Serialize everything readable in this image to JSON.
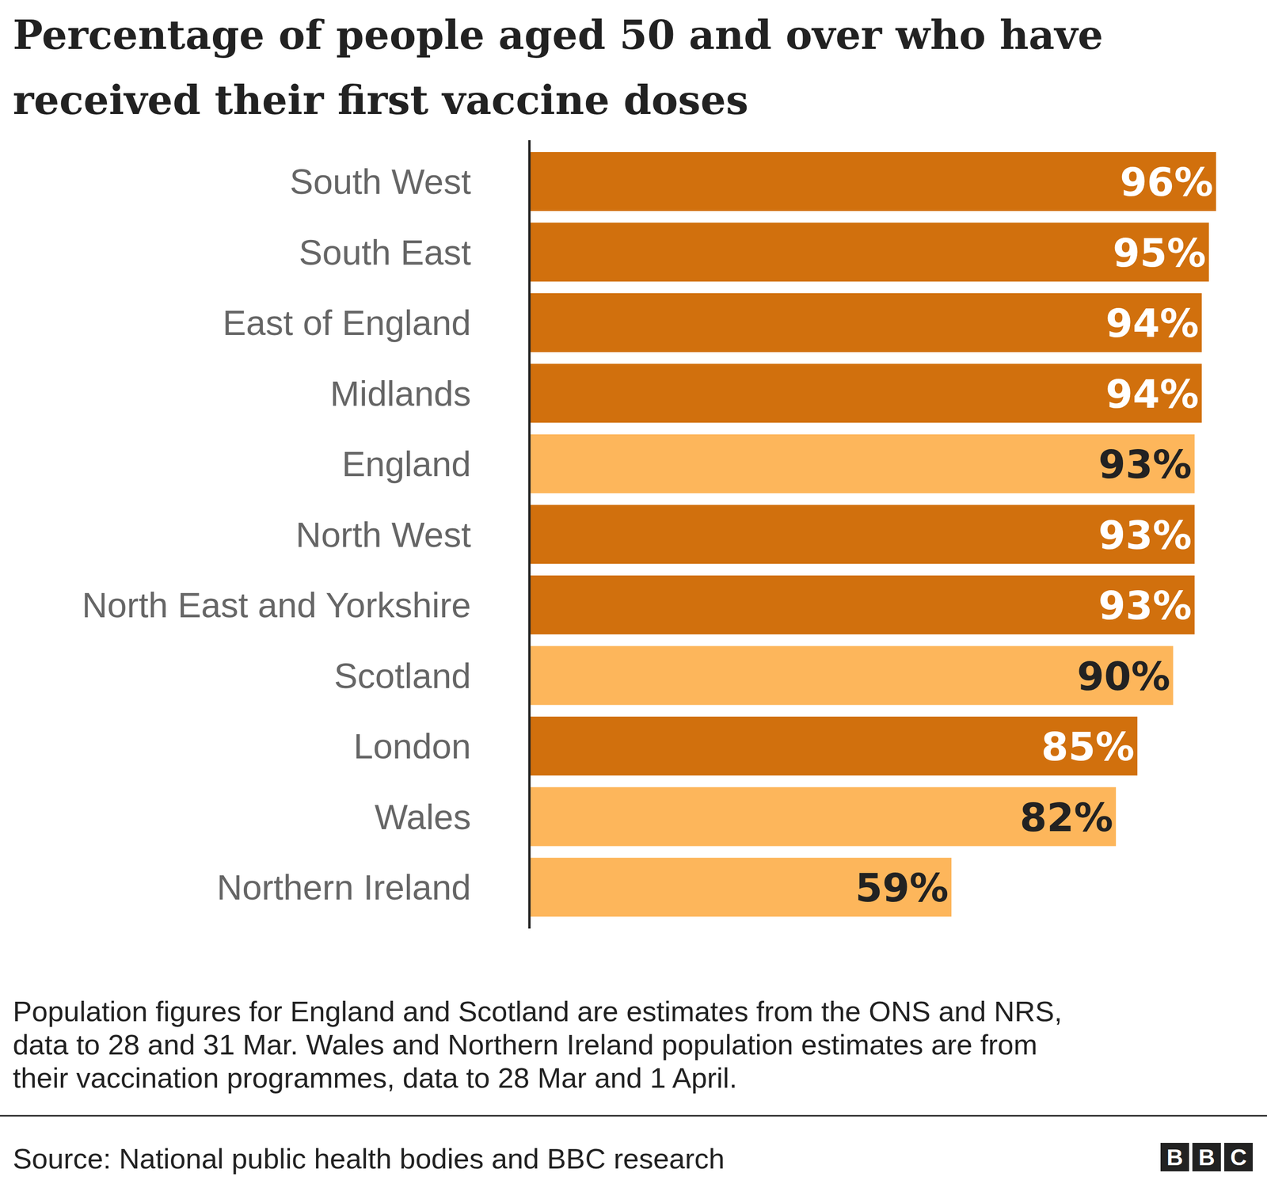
{
  "chart_data": {
    "type": "bar",
    "orientation": "horizontal",
    "title": [
      "Percentage of people aged 50 and over who have",
      "received their first vaccine doses"
    ],
    "categories": [
      "South West",
      "South East",
      "East of England",
      "Midlands",
      "England",
      "North West",
      "North East and Yorkshire",
      "Scotland",
      "London",
      "Wales",
      "Northern Ireland"
    ],
    "values": [
      96,
      95,
      94,
      94,
      93,
      93,
      93,
      90,
      85,
      82,
      59
    ],
    "value_labels": [
      "96%",
      "95%",
      "94%",
      "94%",
      "93%",
      "93%",
      "93%",
      "90%",
      "85%",
      "82%",
      "59%"
    ],
    "colors": [
      "#d1700d",
      "#d1700d",
      "#d1700d",
      "#d1700d",
      "#fdb65b",
      "#d1700d",
      "#d1700d",
      "#fdb65b",
      "#d1700d",
      "#fdb65b",
      "#fdb65b"
    ],
    "xlim": [
      0,
      100
    ],
    "data_labels": true,
    "tick_labels": "y",
    "grid": false,
    "notes": [
      "Population figures for England and Scotland are estimates from the ONS and NRS,",
      "data to 28 and 31 Mar. Wales and Northern Ireland population estimates are from",
      "their vaccination programmes, data to 28 Mar and 1 April."
    ],
    "source": "Source: National public health bodies and BBC research",
    "logo": "BBC"
  }
}
